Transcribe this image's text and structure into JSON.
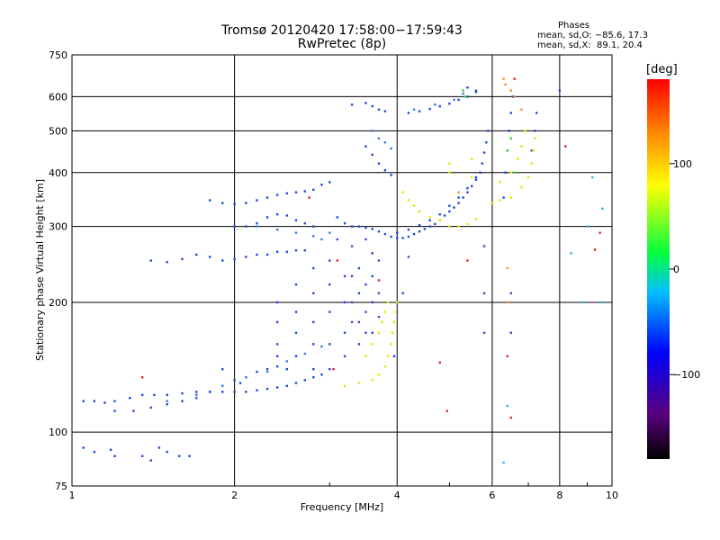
{
  "chart_data": {
    "type": "scatter",
    "title": "Tromsø 20120420 17:58:00−17:59:43",
    "subtitle": "RwPretec (8p)",
    "xlabel": "Frequency [MHz]",
    "ylabel": "Stationary phase Virtual Height [km]",
    "x_scale": "log",
    "y_scale": "log",
    "xlim": [
      1,
      10
    ],
    "ylim": [
      75,
      750
    ],
    "x_ticks": [
      1,
      2,
      4,
      6,
      8,
      10
    ],
    "y_ticks": [
      75,
      100,
      200,
      300,
      400,
      500,
      600,
      750
    ],
    "grid": true,
    "stats": {
      "heading": "Phases",
      "o_line": "mean, sd,O: −85.6, 17.3",
      "x_line": "mean, sd,X:  89.1, 20.4"
    },
    "colorbar": {
      "label": "[deg]",
      "ticks": [
        100,
        0,
        -100
      ],
      "range": [
        -180,
        180
      ],
      "colormap": "rainbow (black → purple → blue → cyan → green → yellow → red)"
    },
    "series": [
      {
        "color": "#1a4ad8",
        "points": [
          [
            1.05,
            118
          ],
          [
            1.1,
            118
          ],
          [
            1.15,
            117
          ],
          [
            1.2,
            118
          ],
          [
            1.28,
            120
          ],
          [
            1.35,
            122
          ],
          [
            1.42,
            122
          ],
          [
            1.5,
            122
          ],
          [
            1.6,
            123
          ],
          [
            1.7,
            124
          ],
          [
            1.8,
            124
          ],
          [
            1.9,
            124
          ],
          [
            2.0,
            124
          ],
          [
            2.1,
            124
          ],
          [
            2.2,
            125
          ],
          [
            2.3,
            126
          ],
          [
            2.4,
            127
          ],
          [
            2.5,
            128
          ],
          [
            2.6,
            130
          ],
          [
            2.7,
            132
          ],
          [
            2.8,
            134
          ],
          [
            2.9,
            136
          ],
          [
            1.2,
            112
          ],
          [
            1.3,
            112
          ],
          [
            1.4,
            114
          ],
          [
            1.5,
            116
          ],
          [
            1.6,
            118
          ],
          [
            1.7,
            120
          ],
          [
            1.8,
            124
          ],
          [
            1.9,
            128
          ],
          [
            2.0,
            132
          ],
          [
            2.1,
            134
          ],
          [
            2.2,
            138
          ],
          [
            2.3,
            140
          ],
          [
            2.4,
            142
          ],
          [
            1.05,
            92
          ],
          [
            1.1,
            90
          ],
          [
            1.18,
            91
          ],
          [
            1.2,
            88
          ],
          [
            1.35,
            88
          ],
          [
            1.4,
            86
          ],
          [
            1.45,
            92
          ],
          [
            1.5,
            90
          ],
          [
            1.58,
            88
          ],
          [
            1.65,
            88
          ],
          [
            1.4,
            250
          ],
          [
            1.5,
            248
          ],
          [
            1.6,
            252
          ],
          [
            1.7,
            258
          ],
          [
            1.8,
            255
          ],
          [
            1.9,
            250
          ],
          [
            2.0,
            252
          ],
          [
            2.1,
            255
          ],
          [
            2.2,
            258
          ],
          [
            2.3,
            258
          ],
          [
            2.4,
            262
          ],
          [
            2.5,
            262
          ],
          [
            2.6,
            264
          ],
          [
            2.7,
            264
          ],
          [
            1.8,
            345
          ],
          [
            1.9,
            340
          ],
          [
            2.0,
            338
          ],
          [
            2.1,
            340
          ],
          [
            2.2,
            345
          ],
          [
            2.3,
            350
          ],
          [
            2.4,
            355
          ],
          [
            2.5,
            358
          ],
          [
            2.6,
            360
          ],
          [
            2.7,
            362
          ],
          [
            2.8,
            365
          ],
          [
            2.9,
            375
          ],
          [
            3.0,
            380
          ],
          [
            2.0,
            300
          ],
          [
            2.1,
            300
          ],
          [
            2.2,
            305
          ],
          [
            2.3,
            315
          ],
          [
            2.4,
            320
          ],
          [
            2.5,
            318
          ],
          [
            2.6,
            310
          ],
          [
            2.7,
            305
          ],
          [
            2.8,
            300
          ],
          [
            3.1,
            315
          ],
          [
            3.2,
            305
          ],
          [
            3.3,
            300
          ],
          [
            3.4,
            300
          ],
          [
            3.5,
            298
          ],
          [
            3.6,
            296
          ],
          [
            3.7,
            292
          ],
          [
            3.8,
            288
          ],
          [
            3.9,
            284
          ],
          [
            4.0,
            282
          ],
          [
            4.1,
            282
          ],
          [
            4.2,
            284
          ],
          [
            4.3,
            288
          ],
          [
            4.4,
            292
          ],
          [
            4.5,
            296
          ],
          [
            4.6,
            300
          ],
          [
            4.7,
            304
          ],
          [
            4.8,
            310
          ],
          [
            4.9,
            318
          ],
          [
            5.0,
            325
          ],
          [
            5.1,
            332
          ],
          [
            5.2,
            340
          ],
          [
            5.3,
            350
          ],
          [
            5.4,
            360
          ],
          [
            5.5,
            372
          ],
          [
            5.6,
            385
          ],
          [
            5.7,
            400
          ],
          [
            5.75,
            420
          ],
          [
            5.8,
            445
          ],
          [
            5.85,
            470
          ],
          [
            5.9,
            500
          ],
          [
            4.0,
            290
          ],
          [
            4.2,
            295
          ],
          [
            4.4,
            302
          ],
          [
            4.6,
            310
          ],
          [
            4.8,
            320
          ],
          [
            5.0,
            335
          ],
          [
            5.2,
            350
          ],
          [
            5.4,
            368
          ],
          [
            5.6,
            390
          ],
          [
            3.5,
            460
          ],
          [
            3.6,
            440
          ],
          [
            3.7,
            420
          ],
          [
            3.8,
            405
          ],
          [
            3.9,
            395
          ],
          [
            3.5,
            580
          ],
          [
            3.6,
            570
          ],
          [
            3.7,
            560
          ],
          [
            3.8,
            555
          ],
          [
            3.3,
            575
          ],
          [
            4.2,
            550
          ],
          [
            4.4,
            555
          ],
          [
            4.6,
            562
          ],
          [
            4.8,
            570
          ],
          [
            5.0,
            578
          ],
          [
            5.2,
            590
          ],
          [
            5.4,
            600
          ],
          [
            5.6,
            615
          ],
          [
            5.4,
            630
          ],
          [
            5.6,
            620
          ],
          [
            6.3,
            350
          ],
          [
            6.35,
            400
          ],
          [
            6.4,
            450
          ],
          [
            6.45,
            500
          ],
          [
            6.5,
            550
          ],
          [
            6.55,
            600
          ],
          [
            7.1,
            450
          ],
          [
            7.2,
            500
          ],
          [
            7.25,
            550
          ],
          [
            8.0,
            620
          ],
          [
            2.4,
            200
          ],
          [
            2.4,
            180
          ],
          [
            2.4,
            160
          ],
          [
            2.4,
            150
          ],
          [
            2.6,
            220
          ],
          [
            2.6,
            190
          ],
          [
            2.6,
            170
          ],
          [
            2.6,
            150
          ],
          [
            2.8,
            240
          ],
          [
            2.8,
            210
          ],
          [
            2.8,
            180
          ],
          [
            2.8,
            160
          ],
          [
            2.8,
            140
          ],
          [
            3.0,
            250
          ],
          [
            3.0,
            220
          ],
          [
            3.0,
            190
          ],
          [
            3.0,
            160
          ],
          [
            3.0,
            140
          ],
          [
            3.2,
            230
          ],
          [
            3.2,
            200
          ],
          [
            3.2,
            170
          ],
          [
            3.2,
            150
          ],
          [
            3.4,
            240
          ],
          [
            3.4,
            210
          ],
          [
            3.4,
            180
          ],
          [
            3.4,
            160
          ],
          [
            3.6,
            260
          ],
          [
            3.6,
            230
          ],
          [
            3.6,
            200
          ],
          [
            3.6,
            170
          ],
          [
            4.0,
            190
          ],
          [
            4.0,
            200
          ],
          [
            4.1,
            210
          ],
          [
            3.95,
            150
          ],
          [
            1.9,
            140
          ],
          [
            2.05,
            130
          ],
          [
            2.5,
            140
          ]
        ]
      },
      {
        "color": "#3a78e8",
        "points": [
          [
            1.5,
            118
          ],
          [
            1.7,
            122
          ],
          [
            1.9,
            128
          ],
          [
            2.1,
            134
          ],
          [
            2.3,
            138
          ],
          [
            2.5,
            146
          ],
          [
            2.7,
            152
          ],
          [
            2.9,
            158
          ],
          [
            2.2,
            300
          ],
          [
            2.4,
            295
          ],
          [
            2.6,
            290
          ],
          [
            2.8,
            285
          ],
          [
            2.9,
            280
          ],
          [
            3.0,
            290
          ],
          [
            3.6,
            500
          ],
          [
            3.7,
            480
          ],
          [
            3.8,
            470
          ],
          [
            3.9,
            455
          ],
          [
            4.3,
            560
          ],
          [
            4.7,
            575
          ],
          [
            5.1,
            590
          ],
          [
            5.3,
            610
          ]
        ]
      },
      {
        "color": "#5c3acb",
        "points": [
          [
            3.3,
            230
          ],
          [
            3.3,
            200
          ],
          [
            3.3,
            180
          ],
          [
            3.5,
            220
          ],
          [
            3.5,
            190
          ],
          [
            3.5,
            170
          ],
          [
            3.7,
            250
          ],
          [
            3.7,
            210
          ],
          [
            3.7,
            185
          ],
          [
            3.1,
            280
          ],
          [
            3.3,
            270
          ],
          [
            3.5,
            280
          ],
          [
            4.2,
            255
          ],
          [
            5.8,
            270
          ],
          [
            5.8,
            210
          ],
          [
            5.8,
            170
          ],
          [
            6.5,
            210
          ],
          [
            6.5,
            170
          ]
        ]
      },
      {
        "color": "#e6e600",
        "points": [
          [
            3.2,
            128
          ],
          [
            3.4,
            130
          ],
          [
            3.6,
            132
          ],
          [
            3.7,
            136
          ],
          [
            3.8,
            142
          ],
          [
            3.85,
            150
          ],
          [
            3.9,
            160
          ],
          [
            3.92,
            170
          ],
          [
            3.95,
            180
          ],
          [
            3.98,
            190
          ],
          [
            4.0,
            200
          ],
          [
            3.5,
            150
          ],
          [
            3.6,
            160
          ],
          [
            3.7,
            170
          ],
          [
            3.75,
            180
          ],
          [
            3.8,
            190
          ],
          [
            3.85,
            200
          ],
          [
            4.1,
            360
          ],
          [
            4.2,
            345
          ],
          [
            4.3,
            335
          ],
          [
            4.4,
            325
          ],
          [
            4.6,
            315
          ],
          [
            4.8,
            310
          ],
          [
            5.0,
            300
          ],
          [
            5.2,
            300
          ],
          [
            5.4,
            304
          ],
          [
            5.6,
            312
          ],
          [
            6.0,
            340
          ],
          [
            6.2,
            345
          ],
          [
            6.5,
            350
          ],
          [
            6.8,
            370
          ],
          [
            7.0,
            390
          ],
          [
            7.1,
            420
          ],
          [
            7.15,
            450
          ],
          [
            7.2,
            480
          ],
          [
            6.2,
            380
          ],
          [
            6.5,
            400
          ],
          [
            6.7,
            430
          ],
          [
            6.8,
            460
          ],
          [
            6.9,
            500
          ],
          [
            5.0,
            420
          ],
          [
            5.0,
            400
          ],
          [
            5.5,
            430
          ],
          [
            5.5,
            390
          ]
        ]
      },
      {
        "color": "#3cd23c",
        "points": [
          [
            5.3,
            620
          ],
          [
            5.35,
            600
          ],
          [
            6.4,
            450
          ],
          [
            6.5,
            480
          ],
          [
            6.6,
            400
          ]
        ]
      },
      {
        "color": "#ff8c1a",
        "points": [
          [
            6.3,
            660
          ],
          [
            6.35,
            640
          ],
          [
            6.5,
            620
          ],
          [
            6.6,
            600
          ],
          [
            6.8,
            560
          ],
          [
            5.2,
            360
          ],
          [
            6.4,
            240
          ],
          [
            6.4,
            200
          ]
        ]
      },
      {
        "color": "#e81c1c",
        "points": [
          [
            9.3,
            265
          ],
          [
            9.5,
            290
          ],
          [
            8.2,
            460
          ],
          [
            6.6,
            660
          ],
          [
            5.4,
            250
          ],
          [
            6.4,
            150
          ],
          [
            6.5,
            108
          ],
          [
            4.8,
            145
          ],
          [
            4.95,
            112
          ],
          [
            3.7,
            225
          ],
          [
            3.1,
            250
          ],
          [
            2.75,
            350
          ],
          [
            1.35,
            134
          ],
          [
            3.05,
            140
          ]
        ]
      },
      {
        "color": "#29b6e0",
        "points": [
          [
            6.3,
            85
          ],
          [
            9.2,
            390
          ],
          [
            9.6,
            330
          ],
          [
            9.0,
            300
          ],
          [
            8.8,
            200
          ],
          [
            9.6,
            200
          ],
          [
            6.4,
            115
          ],
          [
            8.4,
            260
          ]
        ]
      }
    ]
  }
}
